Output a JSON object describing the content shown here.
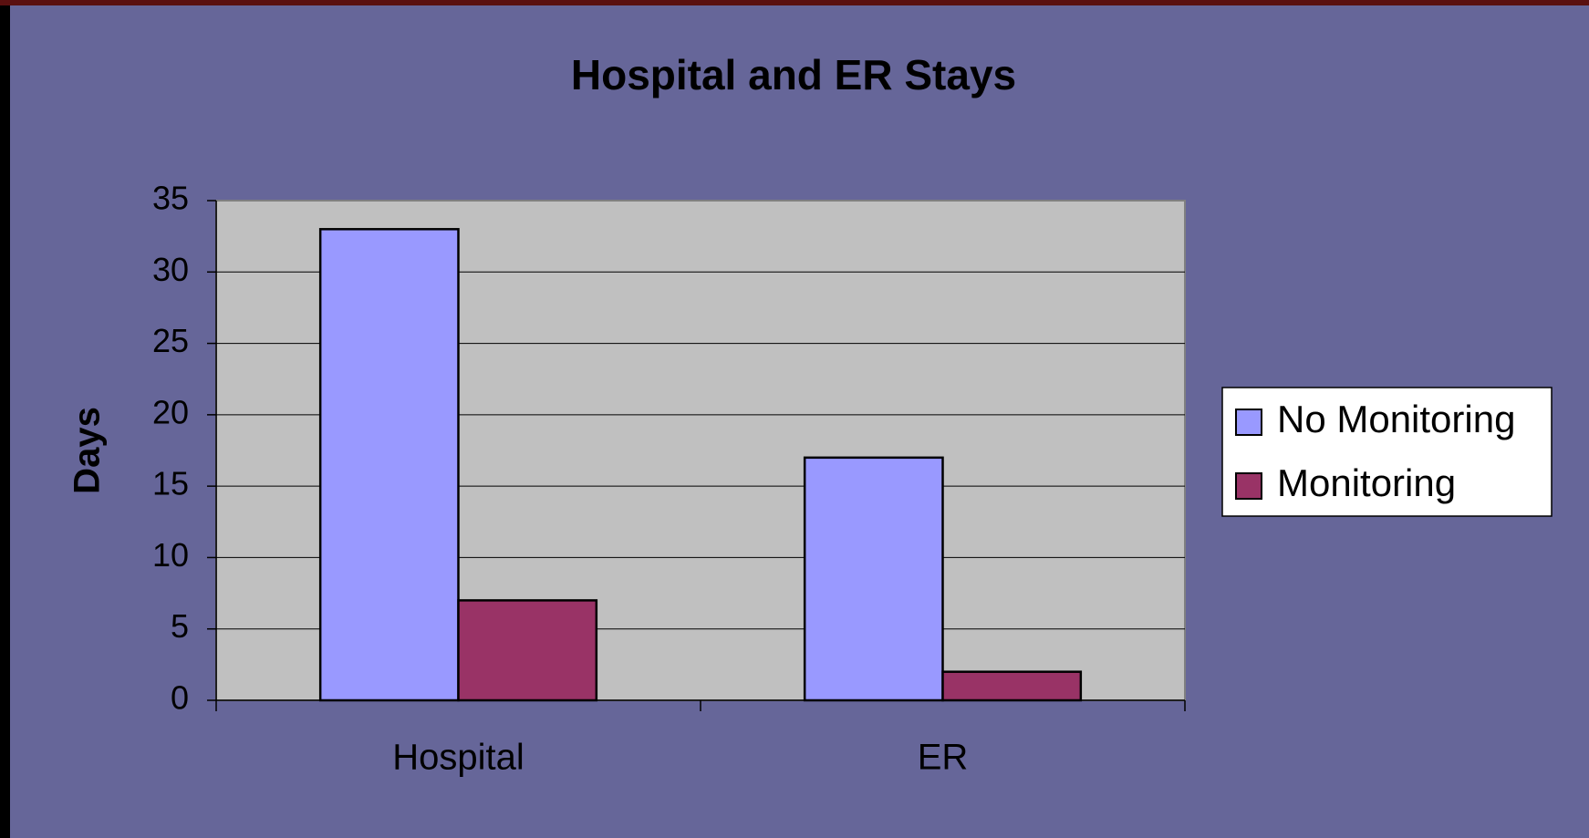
{
  "chart_data": {
    "type": "bar",
    "title": "Hospital and ER Stays",
    "y_label": "Days",
    "categories": [
      "Hospital",
      "ER"
    ],
    "series": [
      {
        "name": "No Monitoring",
        "color": "#9999ff",
        "values": [
          33,
          17
        ]
      },
      {
        "name": "Monitoring",
        "color": "#993366",
        "values": [
          7,
          2
        ]
      }
    ],
    "ylim": [
      0,
      35
    ],
    "yticks": [
      0,
      5,
      10,
      15,
      20,
      25,
      30,
      35
    ],
    "grid": true,
    "legend": "right"
  }
}
